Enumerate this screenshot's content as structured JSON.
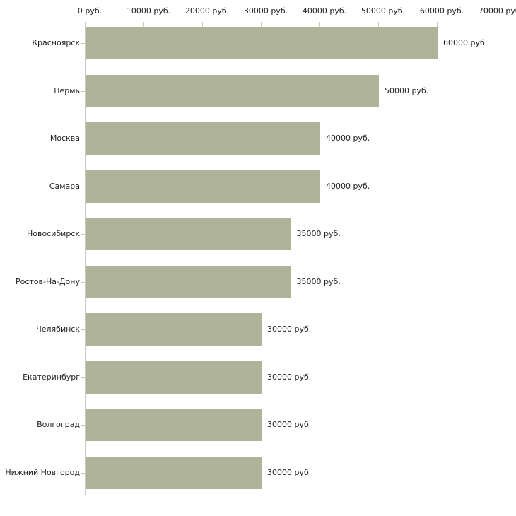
{
  "chart_data": {
    "type": "bar",
    "orientation": "horizontal",
    "title": "",
    "xlabel": "",
    "ylabel": "",
    "unit": "руб.",
    "categories": [
      "Красноярск",
      "Пермь",
      "Москва",
      "Самара",
      "Новосибирск",
      "Ростов-На-Дону",
      "Челябинск",
      "Екатеринбург",
      "Волгоград",
      "Нижний Новгород"
    ],
    "values": [
      60000,
      50000,
      40000,
      40000,
      35000,
      35000,
      30000,
      30000,
      30000,
      30000
    ],
    "value_labels": [
      "60000 руб.",
      "50000 руб.",
      "40000 руб.",
      "40000 руб.",
      "35000 руб.",
      "35000 руб.",
      "30000 руб.",
      "30000 руб.",
      "30000 руб.",
      "30000 руб."
    ],
    "x_ticks": [
      0,
      10000,
      20000,
      30000,
      40000,
      50000,
      60000,
      70000
    ],
    "x_tick_labels": [
      "0 руб.",
      "10000 руб.",
      "20000 руб.",
      "30000 руб.",
      "40000 руб.",
      "50000 руб.",
      "60000 руб.",
      "70000 руб."
    ],
    "xlim": [
      0,
      70000
    ],
    "grid": false,
    "legend": false,
    "colors": {
      "bar": "#aeb39a",
      "axis_line": "#c9c9c1",
      "tick": "#c9cdab",
      "text": "#222222",
      "background": "#ffffff"
    }
  }
}
